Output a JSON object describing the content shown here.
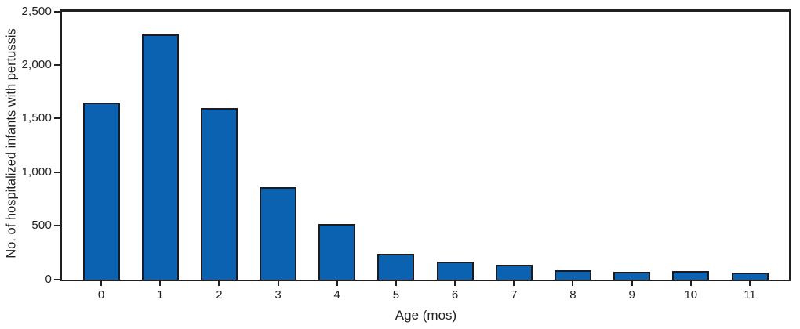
{
  "chart_data": {
    "type": "bar",
    "title": "",
    "xlabel": "Age (mos)",
    "ylabel": "No. of hospitalized infants with pertussis",
    "categories": [
      "0",
      "1",
      "2",
      "3",
      "4",
      "5",
      "6",
      "7",
      "8",
      "9",
      "10",
      "11"
    ],
    "values": [
      1650,
      2285,
      1600,
      860,
      520,
      240,
      170,
      140,
      85,
      70,
      80,
      65
    ],
    "ylim": [
      0,
      2500
    ],
    "yticks": [
      0,
      500,
      1000,
      1500,
      2000,
      2500
    ],
    "ytick_labels": [
      "0",
      "500",
      "1,000",
      "1,500",
      "2,000",
      "2,500"
    ],
    "grid": "off",
    "legend": "none",
    "colors": {
      "bar_fill": "#0a62b0",
      "bar_border": "#1c1b22",
      "axis": "#231f20",
      "text": "#231f20",
      "background": "#ffffff"
    }
  }
}
